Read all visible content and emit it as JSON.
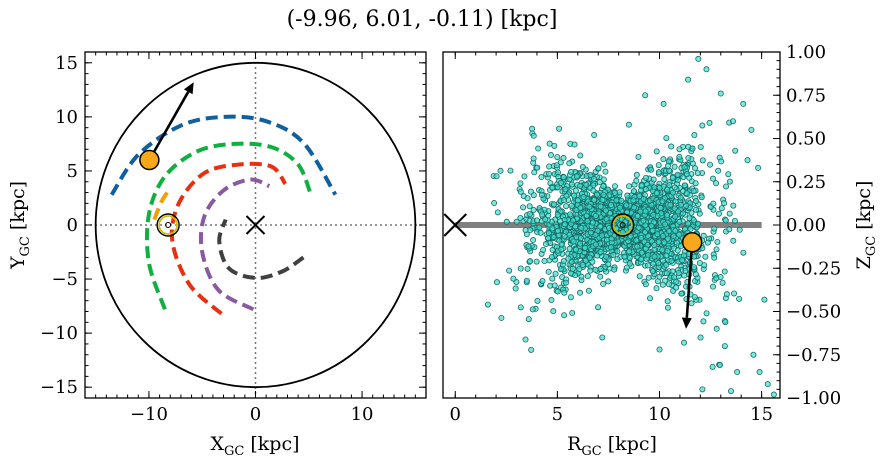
{
  "figure": {
    "suptitle": "(-9.96, 6.01, -0.11) [kpc]",
    "colors": {
      "arm_blue": "#1060a0",
      "arm_green": "#10b040",
      "arm_orange": "#f0a000",
      "arm_red": "#e83010",
      "arm_purple": "#8a5aa0",
      "arm_dark": "#404040",
      "marker_fill": "#f8a818",
      "scatter_fill": "#40e0d0",
      "scatter_edge": "#1a6a66",
      "disk_line": "#808080",
      "sun_ring": "#d4b800"
    }
  },
  "chart_data": [
    {
      "type": "line",
      "panel": "left",
      "xlabel": "X",
      "xlabel_sub": "GC",
      "xlabel_unit": "[kpc]",
      "ylabel": "Y",
      "ylabel_sub": "GC",
      "ylabel_unit": "[kpc]",
      "xlim": [
        -16,
        16
      ],
      "ylim": [
        -16,
        16
      ],
      "xticks": [
        -10,
        0,
        10
      ],
      "xtick_labels": [
        "−10",
        "0",
        "10"
      ],
      "yticks": [
        -15,
        -10,
        -5,
        0,
        5,
        10,
        15
      ],
      "ytick_labels": [
        "−15",
        "−10",
        "−5",
        "0",
        "5",
        "10",
        "15"
      ],
      "boundary_circle_radius": 15,
      "crosshair_lines": [
        0
      ],
      "galactic_center": [
        0,
        0
      ],
      "sun_position": [
        -8.2,
        0
      ],
      "star_marker": [
        -9.96,
        6.01
      ],
      "velocity_arrow": {
        "start": [
          -9.96,
          6.01
        ],
        "end": [
          -5.8,
          13.2
        ]
      },
      "spiral_arms": [
        {
          "color": "arm_blue",
          "points": [
            [
              -13.5,
              2.8
            ],
            [
              -11,
              6.5
            ],
            [
              -7,
              9.2
            ],
            [
              -3,
              10.0
            ],
            [
              1,
              9.6
            ],
            [
              4.5,
              7.6
            ],
            [
              7.5,
              2.8
            ]
          ]
        },
        {
          "color": "arm_green",
          "points": [
            [
              -8.5,
              -7.8
            ],
            [
              -10.0,
              -3.5
            ],
            [
              -10.0,
              1.0
            ],
            [
              -8.5,
              4.5
            ],
            [
              -5.5,
              6.8
            ],
            [
              -2,
              7.5
            ],
            [
              1.5,
              7.2
            ],
            [
              4.0,
              5.6
            ],
            [
              5.2,
              2.8
            ]
          ]
        },
        {
          "color": "arm_orange",
          "points": [
            [
              -9.5,
              0.5
            ],
            [
              -8.8,
              2.2
            ],
            [
              -8.0,
              3.4
            ]
          ]
        },
        {
          "color": "arm_red",
          "points": [
            [
              -3.2,
              -8.2
            ],
            [
              -6.2,
              -5.5
            ],
            [
              -7.8,
              -1.5
            ],
            [
              -7.2,
              2.0
            ],
            [
              -4.8,
              4.8
            ],
            [
              -1.5,
              5.6
            ],
            [
              1.5,
              5.4
            ],
            [
              2.8,
              3.8
            ]
          ]
        },
        {
          "color": "arm_purple",
          "points": [
            [
              -0.2,
              -7.8
            ],
            [
              -3.5,
              -6.0
            ],
            [
              -5.0,
              -2.5
            ],
            [
              -4.8,
              0.8
            ],
            [
              -3.0,
              3.2
            ],
            [
              -0.5,
              4.2
            ],
            [
              1.3,
              3.6
            ]
          ]
        },
        {
          "color": "arm_dark",
          "points": [
            [
              4.5,
              -3.0
            ],
            [
              2.5,
              -4.3
            ],
            [
              0.0,
              -4.9
            ],
            [
              -2.5,
              -4.0
            ],
            [
              -3.4,
              -1.5
            ],
            [
              -2.8,
              0.5
            ]
          ]
        }
      ]
    },
    {
      "type": "scatter",
      "panel": "right",
      "xlabel": "R",
      "xlabel_sub": "GC",
      "xlabel_unit": "[kpc]",
      "ylabel": "Z",
      "ylabel_sub": "GC",
      "ylabel_unit": "[kpc]",
      "xlim": [
        -0.6,
        15.9
      ],
      "ylim": [
        -1.0,
        1.0
      ],
      "xticks": [
        0,
        5,
        10,
        15
      ],
      "xtick_labels": [
        "0",
        "5",
        "10",
        "15"
      ],
      "yticks": [
        -1.0,
        -0.75,
        -0.5,
        -0.25,
        0.0,
        0.25,
        0.5,
        0.75,
        1.0
      ],
      "ytick_labels": [
        "−1.00",
        "−0.75",
        "−0.50",
        "−0.25",
        "0.00",
        "0.25",
        "0.50",
        "0.75",
        "1.00"
      ],
      "disk_line": {
        "x": [
          0,
          15
        ],
        "y": 0
      },
      "galactic_center": [
        0,
        0
      ],
      "sun_position": [
        8.2,
        0
      ],
      "star_marker": [
        11.6,
        -0.1
      ],
      "velocity_arrow": {
        "start": [
          11.6,
          -0.1
        ],
        "end": [
          11.3,
          -0.6
        ]
      },
      "scatter_distribution": {
        "count": 2600,
        "r_center": 8.2,
        "r_spread": 2.1,
        "r_range": [
          1.5,
          15.5
        ],
        "z_spread_base": 0.07,
        "z_spread_growth": 0.04
      },
      "scatter_outliers": [
        [
          1.6,
          -0.46
        ],
        [
          11.9,
          0.96
        ],
        [
          12.3,
          0.9
        ],
        [
          11.4,
          0.84
        ],
        [
          13.0,
          0.76
        ],
        [
          14.1,
          0.7
        ],
        [
          13.6,
          0.6
        ],
        [
          14.5,
          0.55
        ],
        [
          12.8,
          -0.6
        ],
        [
          13.2,
          -0.7
        ],
        [
          14.6,
          -0.75
        ],
        [
          14.9,
          -0.85
        ],
        [
          15.3,
          -0.92
        ],
        [
          15.6,
          -0.98
        ],
        [
          13.8,
          -0.85
        ],
        [
          12.6,
          -0.82
        ],
        [
          11.2,
          -0.68
        ],
        [
          10.0,
          -0.72
        ],
        [
          9.3,
          0.75
        ],
        [
          6.8,
          0.52
        ],
        [
          7.2,
          -0.65
        ],
        [
          8.5,
          0.58
        ],
        [
          10.2,
          0.7
        ],
        [
          12.1,
          -0.95
        ],
        [
          13.5,
          -0.96
        ]
      ]
    }
  ]
}
